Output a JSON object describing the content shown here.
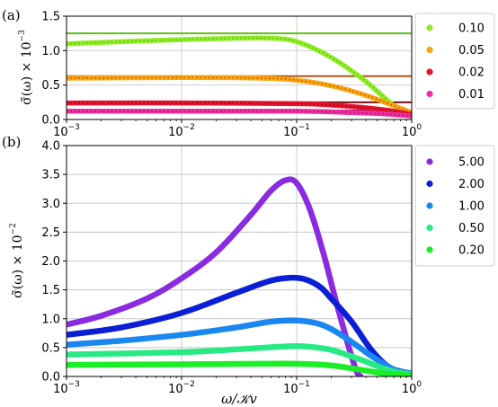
{
  "chart_data": [
    {
      "panel": "(a)",
      "type": "line",
      "xscale": "log",
      "xlim": [
        0.001,
        1
      ],
      "ylim": [
        0,
        1.5
      ],
      "ylabel": "σ̃(ω) × 10",
      "ylabel_exp": "−3",
      "xtick_labels": [
        {
          "base": "10",
          "exp": "−3"
        },
        {
          "base": "10",
          "exp": "−2"
        },
        {
          "base": "10",
          "exp": "−1"
        },
        {
          "base": "10",
          "exp": "0"
        }
      ],
      "ytick_labels": [
        "0.0",
        "0.5",
        "1.0",
        "1.5"
      ],
      "grid": true,
      "legend_position": "outside-right",
      "series": [
        {
          "name": "0.10",
          "color": "#8fec25",
          "ref_color": "#5fbf18",
          "plateau": 1.25,
          "x": [
            0.001,
            0.003,
            0.01,
            0.03,
            0.06,
            0.1,
            0.2,
            0.4,
            0.7,
            1.0
          ],
          "y": [
            1.1,
            1.13,
            1.16,
            1.18,
            1.18,
            1.13,
            0.9,
            0.55,
            0.2,
            0.08
          ]
        },
        {
          "name": "0.05",
          "color": "#fba50f",
          "ref_color": "#b4561a",
          "plateau": 0.63,
          "x": [
            0.001,
            0.01,
            0.05,
            0.1,
            0.2,
            0.4,
            0.7,
            1.0
          ],
          "y": [
            0.6,
            0.61,
            0.6,
            0.57,
            0.49,
            0.35,
            0.2,
            0.1
          ]
        },
        {
          "name": "0.02",
          "color": "#e8122d",
          "ref_color": "#7a0f14",
          "plateau": 0.25,
          "x": [
            0.001,
            0.01,
            0.1,
            0.2,
            0.4,
            0.7,
            1.0
          ],
          "y": [
            0.24,
            0.24,
            0.23,
            0.21,
            0.17,
            0.12,
            0.07
          ]
        },
        {
          "name": "0.01",
          "color": "#ee2ea2",
          "ref_color": "#a01a60",
          "plateau": 0.13,
          "x": [
            0.001,
            0.01,
            0.1,
            0.3,
            0.6,
            1.0
          ],
          "y": [
            0.12,
            0.12,
            0.12,
            0.1,
            0.08,
            0.05
          ]
        }
      ]
    },
    {
      "panel": "(b)",
      "type": "line",
      "xscale": "log",
      "xlim": [
        0.001,
        1
      ],
      "ylim": [
        0,
        4
      ],
      "xlabel": "ω/𝒦v",
      "ylabel": "σ̃(ω) × 10",
      "ylabel_exp": "−2",
      "xtick_labels": [
        {
          "base": "10",
          "exp": "−3"
        },
        {
          "base": "10",
          "exp": "−2"
        },
        {
          "base": "10",
          "exp": "−1"
        },
        {
          "base": "10",
          "exp": "0"
        }
      ],
      "ytick_labels": [
        "0.0",
        "0.5",
        "1.0",
        "1.5",
        "2.0",
        "2.5",
        "3.0",
        "3.5",
        "4.0"
      ],
      "grid": true,
      "legend_position": "outside-right",
      "series": [
        {
          "name": "5.00",
          "color": "#8a2be2",
          "x": [
            0.001,
            0.002,
            0.005,
            0.01,
            0.02,
            0.04,
            0.06,
            0.08,
            0.1,
            0.13,
            0.17,
            0.22,
            0.28,
            0.33,
            0.36
          ],
          "y": [
            0.9,
            1.05,
            1.35,
            1.7,
            2.15,
            2.8,
            3.22,
            3.4,
            3.35,
            2.9,
            2.15,
            1.3,
            0.55,
            0.1,
            0.0
          ]
        },
        {
          "name": "2.00",
          "color": "#0a1fd6",
          "x": [
            0.001,
            0.003,
            0.01,
            0.03,
            0.06,
            0.09,
            0.12,
            0.16,
            0.2,
            0.3,
            0.45,
            0.65,
            1.0
          ],
          "y": [
            0.72,
            0.85,
            1.1,
            1.45,
            1.66,
            1.71,
            1.68,
            1.55,
            1.35,
            0.95,
            0.45,
            0.15,
            0.05
          ]
        },
        {
          "name": "1.00",
          "color": "#1a86ef",
          "x": [
            0.001,
            0.003,
            0.01,
            0.03,
            0.06,
            0.1,
            0.15,
            0.2,
            0.3,
            0.45,
            0.7,
            1.0
          ],
          "y": [
            0.55,
            0.62,
            0.72,
            0.85,
            0.95,
            0.97,
            0.92,
            0.82,
            0.6,
            0.35,
            0.12,
            0.05
          ]
        },
        {
          "name": "0.50",
          "color": "#27ea85",
          "x": [
            0.001,
            0.01,
            0.03,
            0.08,
            0.12,
            0.2,
            0.35,
            0.55,
            0.8,
            1.0
          ],
          "y": [
            0.38,
            0.42,
            0.47,
            0.52,
            0.52,
            0.46,
            0.3,
            0.15,
            0.06,
            0.04
          ]
        },
        {
          "name": "0.20",
          "color": "#1aee26",
          "x": [
            0.001,
            0.01,
            0.05,
            0.1,
            0.2,
            0.35,
            0.6,
            1.0
          ],
          "y": [
            0.2,
            0.21,
            0.22,
            0.22,
            0.19,
            0.12,
            0.05,
            0.02
          ]
        }
      ]
    }
  ]
}
